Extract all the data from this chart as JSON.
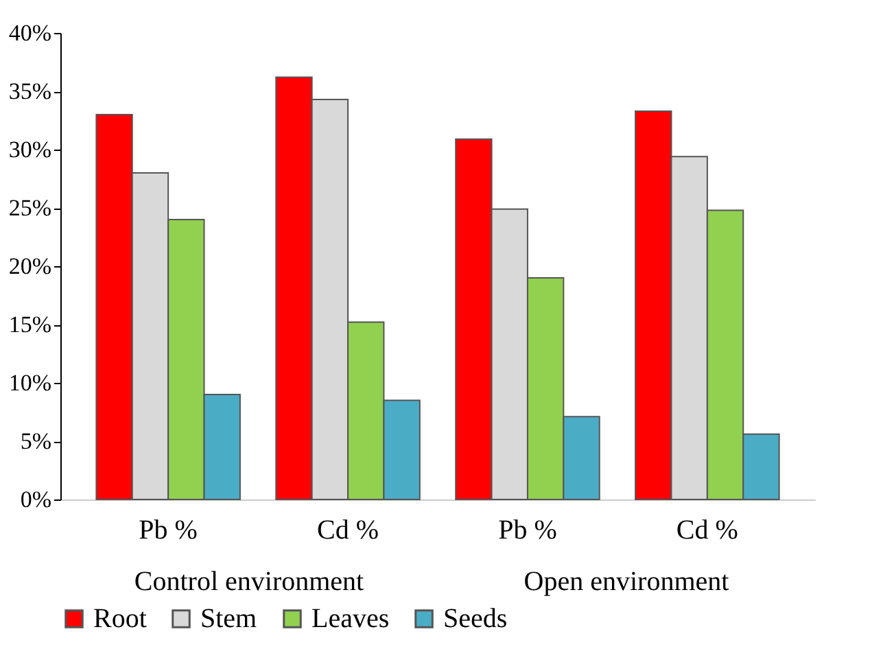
{
  "chart_data": {
    "type": "bar",
    "categories": [
      "Pb %",
      "Cd %",
      "Pb %",
      "Cd %"
    ],
    "series": [
      {
        "name": "Root",
        "color": "#ff0000",
        "values": [
          33,
          36.2,
          30.9,
          33.3
        ]
      },
      {
        "name": "Stem",
        "color": "#d9d9d9",
        "values": [
          28,
          34.3,
          24.9,
          29.4
        ]
      },
      {
        "name": "Leaves",
        "color": "#92d050",
        "values": [
          24,
          15.2,
          19,
          24.8
        ]
      },
      {
        "name": "Seeds",
        "color": "#4bacc6",
        "values": [
          9,
          8.5,
          7.1,
          5.6
        ]
      }
    ],
    "annotations": [
      "Control environment",
      "Open environment"
    ],
    "ylim": [
      0,
      40
    ],
    "yticks": [
      {
        "value": 0,
        "label": "0%"
      },
      {
        "value": 5,
        "label": "5%"
      },
      {
        "value": 10,
        "label": "10%"
      },
      {
        "value": 15,
        "label": "15%"
      },
      {
        "value": 20,
        "label": "20%"
      },
      {
        "value": 25,
        "label": "25%"
      },
      {
        "value": 30,
        "label": "30%"
      },
      {
        "value": 35,
        "label": "35%"
      },
      {
        "value": 40,
        "label": "40%"
      }
    ],
    "grid": false,
    "legend": "bottom"
  }
}
